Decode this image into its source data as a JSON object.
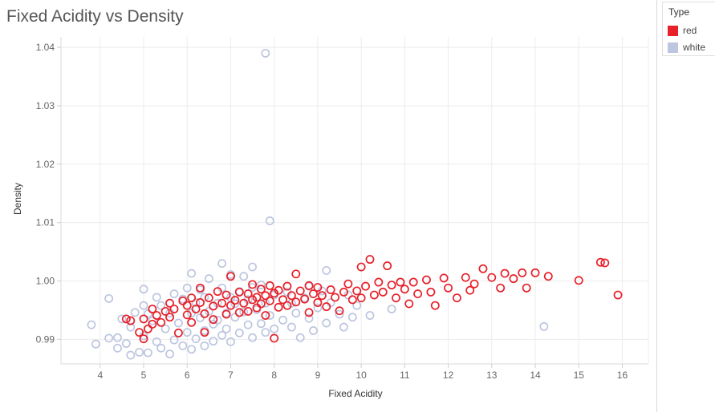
{
  "colors": {
    "red": "#e8202a",
    "white": "#bdc6e0",
    "grid": "#ececec"
  },
  "chart_data": {
    "type": "scatter",
    "title": "Fixed Acidity vs Density",
    "xlabel": "Fixed Acidity",
    "ylabel": "Density",
    "xlim": [
      3.1,
      16.6
    ],
    "ylim": [
      0.9858,
      1.0418
    ],
    "x_ticks": [
      "4",
      "5",
      "6",
      "7",
      "8",
      "9",
      "10",
      "11",
      "12",
      "13",
      "14",
      "15",
      "16"
    ],
    "y_ticks": [
      "0.99",
      "1.00",
      "1.01",
      "1.02",
      "1.03",
      "1.04"
    ],
    "grid": true,
    "legend_position": "top-right",
    "legend": {
      "title": "Type",
      "items": [
        "red",
        "white"
      ]
    },
    "series": [
      {
        "name": "white",
        "color": "#bdc6e0",
        "points": [
          [
            7.8,
            1.039
          ],
          [
            7.9,
            1.0103
          ],
          [
            14.2,
            0.9922
          ],
          [
            3.8,
            0.9925
          ],
          [
            3.9,
            0.9892
          ],
          [
            4.2,
            0.9902
          ],
          [
            4.2,
            0.997
          ],
          [
            4.4,
            0.9903
          ],
          [
            4.4,
            0.9885
          ],
          [
            4.5,
            0.9935
          ],
          [
            4.6,
            0.9893
          ],
          [
            4.7,
            0.9873
          ],
          [
            4.7,
            0.9921
          ],
          [
            4.8,
            0.9946
          ],
          [
            4.9,
            0.9878
          ],
          [
            5.0,
            0.9986
          ],
          [
            5.0,
            0.9958
          ],
          [
            5.0,
            0.9906
          ],
          [
            5.1,
            0.9877
          ],
          [
            5.1,
            0.9944
          ],
          [
            5.2,
            0.9932
          ],
          [
            5.3,
            0.9896
          ],
          [
            5.3,
            0.9972
          ],
          [
            5.4,
            0.9885
          ],
          [
            5.4,
            0.9958
          ],
          [
            5.5,
            0.9918
          ],
          [
            5.6,
            0.9945
          ],
          [
            5.6,
            0.9875
          ],
          [
            5.7,
            0.9899
          ],
          [
            5.7,
            0.9978
          ],
          [
            5.8,
            0.9928
          ],
          [
            5.9,
            0.9889
          ],
          [
            5.9,
            0.9969
          ],
          [
            6.0,
            0.9912
          ],
          [
            6.0,
            0.9988
          ],
          [
            6.1,
            0.9945
          ],
          [
            6.1,
            0.9883
          ],
          [
            6.1,
            1.0013
          ],
          [
            6.2,
            0.9963
          ],
          [
            6.2,
            0.9901
          ],
          [
            6.3,
            0.9937
          ],
          [
            6.3,
            0.9985
          ],
          [
            6.4,
            0.9915
          ],
          [
            6.4,
            0.9889
          ],
          [
            6.4,
            0.9972
          ],
          [
            6.5,
            0.9948
          ],
          [
            6.5,
            1.0004
          ],
          [
            6.6,
            0.9926
          ],
          [
            6.6,
            0.9897
          ],
          [
            6.7,
            0.9962
          ],
          [
            6.7,
            0.9933
          ],
          [
            6.8,
            0.9907
          ],
          [
            6.8,
            0.9988
          ],
          [
            6.8,
            1.003
          ],
          [
            6.9,
            0.9945
          ],
          [
            6.9,
            0.9918
          ],
          [
            7.0,
            0.9972
          ],
          [
            7.0,
            0.9896
          ],
          [
            7.0,
            1.0011
          ],
          [
            7.1,
            0.9938
          ],
          [
            7.1,
            0.9961
          ],
          [
            7.2,
            0.9911
          ],
          [
            7.2,
            0.9982
          ],
          [
            7.3,
            0.9947
          ],
          [
            7.3,
            1.0008
          ],
          [
            7.4,
            0.9925
          ],
          [
            7.4,
            0.9968
          ],
          [
            7.5,
            0.9903
          ],
          [
            7.5,
            0.9989
          ],
          [
            7.5,
            1.0024
          ],
          [
            7.6,
            0.9951
          ],
          [
            7.7,
            0.9927
          ],
          [
            7.7,
            0.9993
          ],
          [
            7.8,
            0.9962
          ],
          [
            7.8,
            0.9912
          ],
          [
            7.9,
            0.9941
          ],
          [
            8.0,
            0.9976
          ],
          [
            8.0,
            0.9918
          ],
          [
            8.1,
            0.9955
          ],
          [
            8.2,
            0.9933
          ],
          [
            8.3,
            0.9981
          ],
          [
            8.4,
            0.9921
          ],
          [
            8.4,
            0.9962
          ],
          [
            8.5,
            0.9945
          ],
          [
            8.6,
            0.9903
          ],
          [
            8.7,
            0.9971
          ],
          [
            8.8,
            0.9936
          ],
          [
            8.8,
            0.9991
          ],
          [
            8.9,
            0.9915
          ],
          [
            9.0,
            0.9954
          ],
          [
            9.1,
            0.9983
          ],
          [
            9.2,
            0.9928
          ],
          [
            9.2,
            1.0018
          ],
          [
            9.3,
            0.9963
          ],
          [
            9.5,
            0.9943
          ],
          [
            9.6,
            0.9921
          ],
          [
            9.7,
            0.9976
          ],
          [
            9.8,
            0.9938
          ],
          [
            9.9,
            0.9958
          ],
          [
            10.2,
            0.9941
          ],
          [
            10.7,
            0.9952
          ]
        ]
      },
      {
        "name": "red",
        "color": "#e8202a",
        "points": [
          [
            4.6,
            0.9935
          ],
          [
            4.7,
            0.9932
          ],
          [
            4.9,
            0.9912
          ],
          [
            5.0,
            0.9935
          ],
          [
            5.0,
            0.9901
          ],
          [
            5.1,
            0.9918
          ],
          [
            5.2,
            0.9952
          ],
          [
            5.2,
            0.9926
          ],
          [
            5.3,
            0.9941
          ],
          [
            5.4,
            0.9929
          ],
          [
            5.5,
            0.9948
          ],
          [
            5.6,
            0.9938
          ],
          [
            5.6,
            0.9962
          ],
          [
            5.7,
            0.9952
          ],
          [
            5.8,
            0.9911
          ],
          [
            5.9,
            0.9966
          ],
          [
            6.0,
            0.9942
          ],
          [
            6.0,
            0.9958
          ],
          [
            6.1,
            0.9971
          ],
          [
            6.1,
            0.9929
          ],
          [
            6.2,
            0.9952
          ],
          [
            6.3,
            0.9963
          ],
          [
            6.3,
            0.9988
          ],
          [
            6.4,
            0.9944
          ],
          [
            6.4,
            0.9912
          ],
          [
            6.5,
            0.9971
          ],
          [
            6.6,
            0.9957
          ],
          [
            6.6,
            0.9934
          ],
          [
            6.7,
            0.9982
          ],
          [
            6.8,
            0.9962
          ],
          [
            6.9,
            0.9943
          ],
          [
            6.9,
            0.9976
          ],
          [
            7.0,
            0.9958
          ],
          [
            7.0,
            1.0008
          ],
          [
            7.1,
            0.9967
          ],
          [
            7.2,
            0.9981
          ],
          [
            7.2,
            0.9946
          ],
          [
            7.3,
            0.9962
          ],
          [
            7.4,
            0.9978
          ],
          [
            7.4,
            0.9948
          ],
          [
            7.5,
            0.9968
          ],
          [
            7.5,
            0.9994
          ],
          [
            7.6,
            0.9954
          ],
          [
            7.6,
            0.9972
          ],
          [
            7.7,
            0.9986
          ],
          [
            7.7,
            0.9961
          ],
          [
            7.8,
            0.9975
          ],
          [
            7.8,
            0.9941
          ],
          [
            7.9,
            0.9966
          ],
          [
            7.9,
            0.9992
          ],
          [
            8.0,
            0.9979
          ],
          [
            8.0,
            0.9902
          ],
          [
            8.1,
            0.9955
          ],
          [
            8.1,
            0.9984
          ],
          [
            8.2,
            0.9968
          ],
          [
            8.3,
            0.9991
          ],
          [
            8.3,
            0.9958
          ],
          [
            8.4,
            0.9975
          ],
          [
            8.5,
            0.9964
          ],
          [
            8.5,
            1.0012
          ],
          [
            8.6,
            0.9983
          ],
          [
            8.7,
            0.9969
          ],
          [
            8.8,
            0.9946
          ],
          [
            8.8,
            0.9992
          ],
          [
            8.9,
            0.9978
          ],
          [
            9.0,
            0.9963
          ],
          [
            9.0,
            0.9989
          ],
          [
            9.1,
            0.9975
          ],
          [
            9.2,
            0.9956
          ],
          [
            9.3,
            0.9985
          ],
          [
            9.4,
            0.9972
          ],
          [
            9.5,
            0.9949
          ],
          [
            9.6,
            0.9981
          ],
          [
            9.7,
            0.9995
          ],
          [
            9.8,
            0.9968
          ],
          [
            9.9,
            0.9983
          ],
          [
            10.0,
            1.0024
          ],
          [
            10.0,
            0.9971
          ],
          [
            10.1,
            0.9991
          ],
          [
            10.2,
            1.0037
          ],
          [
            10.3,
            0.9976
          ],
          [
            10.4,
            0.9998
          ],
          [
            10.5,
            0.9981
          ],
          [
            10.6,
            1.0026
          ],
          [
            10.7,
            0.9993
          ],
          [
            10.8,
            0.9971
          ],
          [
            10.9,
            0.9998
          ],
          [
            11.0,
            0.9986
          ],
          [
            11.1,
            0.9961
          ],
          [
            11.2,
            0.9998
          ],
          [
            11.3,
            0.9978
          ],
          [
            11.5,
            1.0002
          ],
          [
            11.6,
            0.9981
          ],
          [
            11.7,
            0.9958
          ],
          [
            11.9,
            1.0005
          ],
          [
            12.0,
            0.9988
          ],
          [
            12.2,
            0.9971
          ],
          [
            12.4,
            1.0006
          ],
          [
            12.5,
            0.9984
          ],
          [
            12.6,
            0.9995
          ],
          [
            12.8,
            1.0021
          ],
          [
            13.0,
            1.0006
          ],
          [
            13.2,
            0.9988
          ],
          [
            13.3,
            1.0013
          ],
          [
            13.5,
            1.0004
          ],
          [
            13.7,
            1.0014
          ],
          [
            13.8,
            0.9988
          ],
          [
            14.0,
            1.0014
          ],
          [
            14.3,
            1.0008
          ],
          [
            15.0,
            1.0001
          ],
          [
            15.5,
            1.0032
          ],
          [
            15.6,
            1.0031
          ],
          [
            15.9,
            0.9976
          ]
        ]
      }
    ]
  }
}
